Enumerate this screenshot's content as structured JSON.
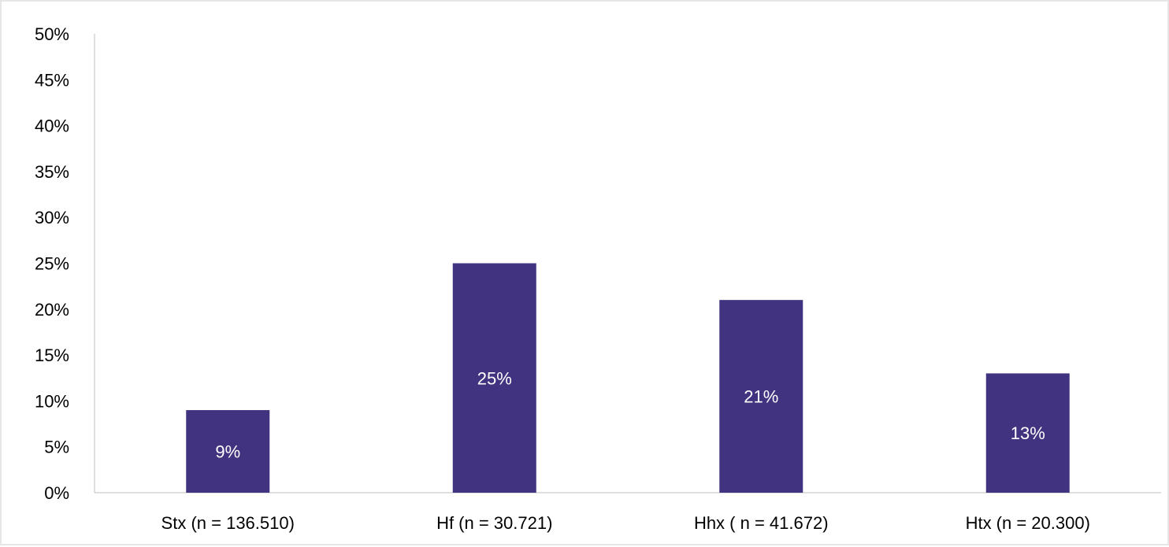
{
  "chart_data": {
    "type": "bar",
    "categories": [
      "Stx (n = 136.510)",
      "Hf (n = 30.721)",
      "Hhx ( n = 41.672)",
      "Htx (n = 20.300)"
    ],
    "values": [
      9,
      25,
      21,
      13
    ],
    "data_labels": [
      "9%",
      "25%",
      "21%",
      "13%"
    ],
    "title": "",
    "xlabel": "",
    "ylabel": "",
    "ylim": [
      0,
      50
    ],
    "y_ticks": [
      0,
      5,
      10,
      15,
      20,
      25,
      30,
      35,
      40,
      45,
      50
    ],
    "y_tick_labels": [
      "0%",
      "5%",
      "10%",
      "15%",
      "20%",
      "25%",
      "30%",
      "35%",
      "40%",
      "45%",
      "50%"
    ],
    "grid": false,
    "legend": "none",
    "bar_color": "#41337f"
  }
}
